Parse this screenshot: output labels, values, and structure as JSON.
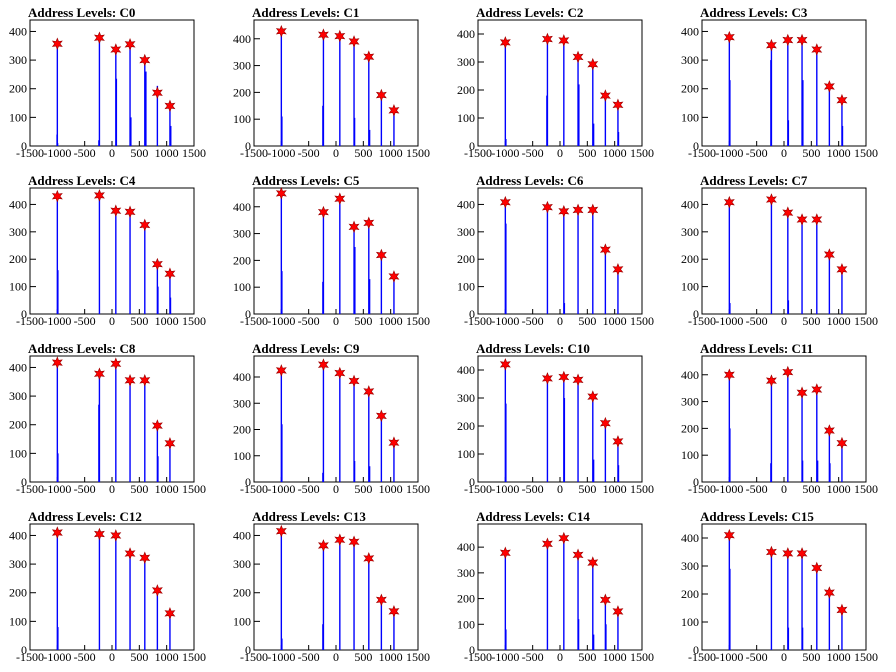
{
  "figure": {
    "x_ticks": [
      -1500,
      -1000,
      -500,
      0,
      500,
      1000,
      1500
    ],
    "x_range": [
      -1500,
      1500
    ]
  },
  "chart_data": [
    {
      "type": "bar",
      "title": "Address Levels: C0",
      "ylim": [
        0,
        440
      ],
      "y_ticks": [
        0,
        100,
        200,
        300,
        400
      ],
      "star_markers": {
        "x": [
          -1000,
          -230,
          70,
          330,
          600,
          830,
          1060
        ],
        "y": [
          357,
          378,
          337,
          355,
          300,
          186,
          140
        ]
      },
      "series": [
        {
          "name": "",
          "color": "#0000ff",
          "x": [
            -1005,
            -995,
            -1000,
            -230,
            -240,
            70,
            80,
            330,
            345,
            600,
            620,
            830,
            1060,
            1075
          ],
          "y": [
            40,
            10,
            357,
            378,
            20,
            337,
            235,
            355,
            100,
            300,
            260,
            210,
            140,
            70
          ]
        }
      ]
    },
    {
      "type": "bar",
      "title": "Address Levels: C1",
      "ylim": [
        0,
        470
      ],
      "y_ticks": [
        0,
        100,
        200,
        300,
        400
      ],
      "star_markers": {
        "x": [
          -1000,
          -230,
          70,
          330,
          600,
          830,
          1060
        ],
        "y": [
          428,
          415,
          410,
          390,
          333,
          190,
          133
        ]
      },
      "series": [
        {
          "name": "",
          "color": "#0000ff",
          "x": [
            -1000,
            -990,
            -230,
            -240,
            70,
            330,
            340,
            600,
            615,
            830,
            1060
          ],
          "y": [
            428,
            110,
            415,
            150,
            410,
            390,
            105,
            333,
            60,
            190,
            133
          ]
        }
      ]
    },
    {
      "type": "bar",
      "title": "Address Levels: C2",
      "ylim": [
        0,
        450
      ],
      "y_ticks": [
        0,
        100,
        200,
        300,
        400
      ],
      "star_markers": {
        "x": [
          -1000,
          -230,
          70,
          330,
          600,
          830,
          1060
        ],
        "y": [
          370,
          382,
          377,
          318,
          292,
          180,
          147
        ]
      },
      "series": [
        {
          "name": "",
          "color": "#0000ff",
          "x": [
            -1000,
            -990,
            -230,
            -240,
            70,
            330,
            345,
            600,
            615,
            830,
            1060,
            1070
          ],
          "y": [
            370,
            25,
            382,
            180,
            377,
            318,
            220,
            292,
            80,
            180,
            147,
            50
          ]
        }
      ]
    },
    {
      "type": "bar",
      "title": "Address Levels: C3",
      "ylim": [
        0,
        440
      ],
      "y_ticks": [
        0,
        100,
        200,
        300,
        400
      ],
      "star_markers": {
        "x": [
          -1000,
          -230,
          70,
          330,
          600,
          830,
          1060
        ],
        "y": [
          380,
          352,
          370,
          370,
          337,
          208,
          160
        ]
      },
      "series": [
        {
          "name": "",
          "color": "#0000ff",
          "x": [
            -1000,
            -990,
            -230,
            -240,
            70,
            80,
            330,
            345,
            600,
            830,
            1060,
            1070
          ],
          "y": [
            380,
            230,
            352,
            300,
            370,
            90,
            370,
            230,
            337,
            208,
            160,
            70
          ]
        }
      ]
    },
    {
      "type": "bar",
      "title": "Address Levels: C4",
      "ylim": [
        0,
        460
      ],
      "y_ticks": [
        0,
        100,
        200,
        300,
        400
      ],
      "star_markers": {
        "x": [
          -1000,
          -230,
          70,
          330,
          600,
          830,
          1060
        ],
        "y": [
          430,
          433,
          377,
          373,
          325,
          182,
          147
        ]
      },
      "series": [
        {
          "name": "",
          "color": "#0000ff",
          "x": [
            -1000,
            -990,
            -230,
            70,
            330,
            600,
            830,
            840,
            1060,
            1070
          ],
          "y": [
            430,
            160,
            433,
            377,
            373,
            325,
            182,
            100,
            147,
            60
          ]
        }
      ]
    },
    {
      "type": "bar",
      "title": "Address Levels: C5",
      "ylim": [
        0,
        470
      ],
      "y_ticks": [
        0,
        100,
        200,
        300,
        400
      ],
      "star_markers": {
        "x": [
          -1000,
          -230,
          70,
          330,
          600,
          830,
          1060
        ],
        "y": [
          450,
          380,
          430,
          325,
          340,
          220,
          140
        ]
      },
      "series": [
        {
          "name": "",
          "color": "#0000ff",
          "x": [
            -1000,
            -990,
            -230,
            -240,
            70,
            330,
            345,
            600,
            615,
            830,
            1060
          ],
          "y": [
            450,
            160,
            380,
            120,
            430,
            325,
            250,
            340,
            130,
            220,
            140
          ]
        }
      ]
    },
    {
      "type": "bar",
      "title": "Address Levels: C6",
      "ylim": [
        0,
        460
      ],
      "y_ticks": [
        0,
        100,
        200,
        300,
        400
      ],
      "star_markers": {
        "x": [
          -1000,
          -230,
          70,
          330,
          600,
          830,
          1060
        ],
        "y": [
          408,
          390,
          375,
          380,
          380,
          235,
          163
        ]
      },
      "series": [
        {
          "name": "",
          "color": "#0000ff",
          "x": [
            -1000,
            -990,
            -230,
            70,
            80,
            330,
            600,
            830,
            1060
          ],
          "y": [
            408,
            330,
            390,
            375,
            40,
            380,
            380,
            235,
            163
          ]
        }
      ]
    },
    {
      "type": "bar",
      "title": "Address Levels: C7",
      "ylim": [
        0,
        460
      ],
      "y_ticks": [
        0,
        100,
        200,
        300,
        400
      ],
      "star_markers": {
        "x": [
          -1000,
          -230,
          70,
          330,
          600,
          830,
          1060
        ],
        "y": [
          408,
          418,
          370,
          345,
          345,
          217,
          163
        ]
      },
      "series": [
        {
          "name": "",
          "color": "#0000ff",
          "x": [
            -1000,
            -990,
            -230,
            70,
            80,
            330,
            600,
            830,
            1060
          ],
          "y": [
            408,
            40,
            418,
            370,
            50,
            345,
            345,
            217,
            163
          ]
        }
      ]
    },
    {
      "type": "bar",
      "title": "Address Levels: C8",
      "ylim": [
        0,
        440
      ],
      "y_ticks": [
        0,
        100,
        200,
        300,
        400
      ],
      "star_markers": {
        "x": [
          -1000,
          -230,
          70,
          330,
          600,
          830,
          1060
        ],
        "y": [
          417,
          378,
          413,
          355,
          355,
          197,
          135
        ]
      },
      "series": [
        {
          "name": "",
          "color": "#0000ff",
          "x": [
            -1000,
            -990,
            -230,
            -240,
            70,
            330,
            600,
            830,
            840,
            1060
          ],
          "y": [
            417,
            100,
            378,
            270,
            413,
            355,
            355,
            197,
            90,
            135
          ]
        }
      ]
    },
    {
      "type": "bar",
      "title": "Address Levels: C9",
      "ylim": [
        0,
        480
      ],
      "y_ticks": [
        0,
        100,
        200,
        300,
        400
      ],
      "star_markers": {
        "x": [
          -1000,
          -230,
          70,
          330,
          600,
          830,
          1060
        ],
        "y": [
          425,
          447,
          415,
          385,
          345,
          252,
          150
        ]
      },
      "series": [
        {
          "name": "",
          "color": "#0000ff",
          "x": [
            -1000,
            -990,
            -230,
            -240,
            70,
            330,
            340,
            600,
            615,
            830,
            1060
          ],
          "y": [
            425,
            220,
            447,
            35,
            415,
            385,
            80,
            345,
            60,
            252,
            150
          ]
        }
      ]
    },
    {
      "type": "bar",
      "title": "Address Levels: C10",
      "ylim": [
        0,
        450
      ],
      "y_ticks": [
        0,
        100,
        200,
        300,
        400
      ],
      "star_markers": {
        "x": [
          -1000,
          -230,
          70,
          330,
          600,
          830,
          1060
        ],
        "y": [
          420,
          370,
          375,
          365,
          305,
          210,
          145
        ]
      },
      "series": [
        {
          "name": "",
          "color": "#0000ff",
          "x": [
            -1000,
            -990,
            -230,
            70,
            80,
            330,
            600,
            615,
            830,
            1060,
            1070
          ],
          "y": [
            420,
            280,
            370,
            375,
            300,
            365,
            305,
            80,
            210,
            145,
            60
          ]
        }
      ]
    },
    {
      "type": "bar",
      "title": "Address Levels: C11",
      "ylim": [
        0,
        470
      ],
      "y_ticks": [
        0,
        100,
        200,
        300,
        400
      ],
      "star_markers": {
        "x": [
          -1000,
          -230,
          70,
          330,
          600,
          830,
          1060
        ],
        "y": [
          400,
          378,
          410,
          333,
          345,
          192,
          145
        ]
      },
      "series": [
        {
          "name": "",
          "color": "#0000ff",
          "x": [
            -1000,
            -990,
            -230,
            -240,
            70,
            330,
            340,
            600,
            615,
            830,
            840,
            1060
          ],
          "y": [
            400,
            200,
            378,
            70,
            410,
            333,
            80,
            345,
            80,
            192,
            70,
            145
          ]
        }
      ]
    },
    {
      "type": "bar",
      "title": "Address Levels: C12",
      "ylim": [
        0,
        440
      ],
      "y_ticks": [
        0,
        100,
        200,
        300,
        400
      ],
      "star_markers": {
        "x": [
          -1000,
          -230,
          70,
          330,
          600,
          830,
          1060
        ],
        "y": [
          410,
          405,
          400,
          337,
          322,
          208,
          128
        ]
      },
      "series": [
        {
          "name": "",
          "color": "#0000ff",
          "x": [
            -1000,
            -990,
            -230,
            70,
            330,
            600,
            830,
            1060
          ],
          "y": [
            410,
            80,
            405,
            400,
            337,
            322,
            208,
            128
          ]
        }
      ]
    },
    {
      "type": "bar",
      "title": "Address Levels: C13",
      "ylim": [
        0,
        440
      ],
      "y_ticks": [
        0,
        100,
        200,
        300,
        400
      ],
      "star_markers": {
        "x": [
          -1000,
          -230,
          70,
          330,
          600,
          830,
          1060
        ],
        "y": [
          415,
          365,
          385,
          378,
          320,
          175,
          135
        ]
      },
      "series": [
        {
          "name": "",
          "color": "#0000ff",
          "x": [
            -1000,
            -990,
            -230,
            -240,
            70,
            330,
            600,
            830,
            1060
          ],
          "y": [
            415,
            40,
            365,
            90,
            385,
            378,
            320,
            175,
            135
          ]
        }
      ]
    },
    {
      "type": "bar",
      "title": "Address Levels: C14",
      "ylim": [
        0,
        490
      ],
      "y_ticks": [
        0,
        100,
        200,
        300,
        400
      ],
      "star_markers": {
        "x": [
          -1000,
          -230,
          70,
          330,
          600,
          830,
          1060
        ],
        "y": [
          378,
          413,
          435,
          370,
          340,
          195,
          150
        ]
      },
      "series": [
        {
          "name": "",
          "color": "#0000ff",
          "x": [
            -1000,
            -990,
            -230,
            70,
            330,
            340,
            600,
            615,
            830,
            840,
            1060
          ],
          "y": [
            378,
            80,
            413,
            435,
            370,
            120,
            340,
            60,
            195,
            100,
            150
          ]
        }
      ]
    },
    {
      "type": "bar",
      "title": "Address Levels: C15",
      "ylim": [
        0,
        450
      ],
      "y_ticks": [
        0,
        100,
        200,
        300,
        400
      ],
      "star_markers": {
        "x": [
          -1000,
          -230,
          70,
          330,
          600,
          830,
          1060
        ],
        "y": [
          410,
          350,
          345,
          345,
          293,
          205,
          143
        ]
      },
      "series": [
        {
          "name": "",
          "color": "#0000ff",
          "x": [
            -1000,
            -990,
            -230,
            70,
            80,
            330,
            340,
            600,
            830,
            1060
          ],
          "y": [
            410,
            290,
            350,
            345,
            80,
            345,
            80,
            293,
            205,
            143
          ]
        }
      ]
    }
  ]
}
